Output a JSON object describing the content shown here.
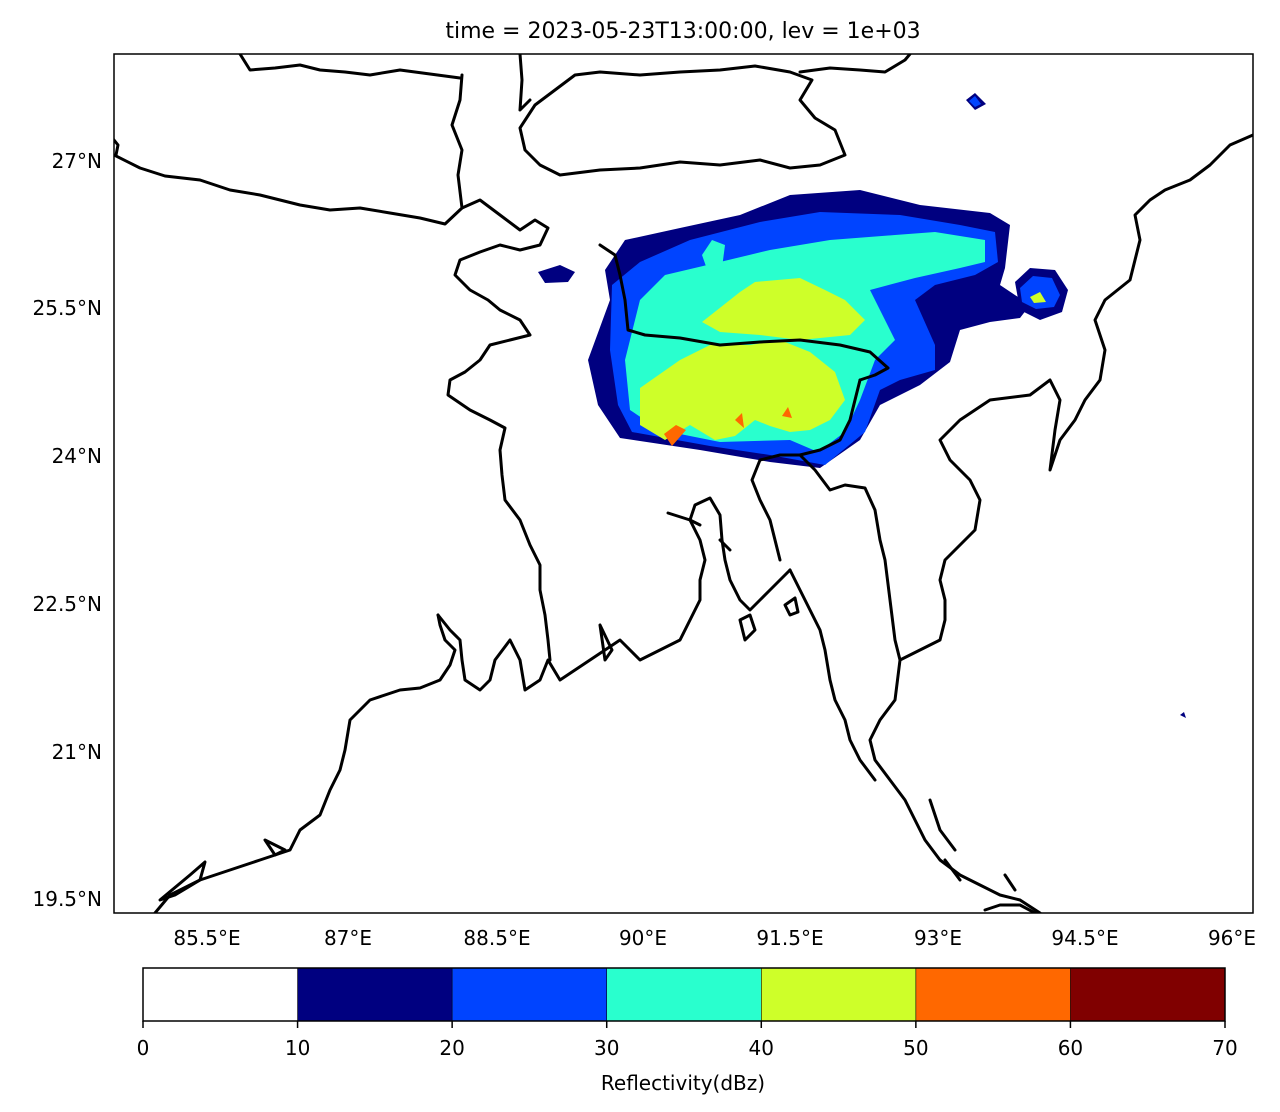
{
  "title": "time = 2023-05-23T13:00:00, lev = 1e+03",
  "map": {
    "lon_range": [
      84.5,
      96.0
    ],
    "lat_range": [
      19.4,
      28.1
    ],
    "lon_ticks": [
      "85.5°E",
      "87°E",
      "88.5°E",
      "90°E",
      "91.5°E",
      "93°E",
      "94.5°E",
      "96°E"
    ],
    "lon_tick_values": [
      85.5,
      87.0,
      88.5,
      90.0,
      91.5,
      93.0,
      94.5,
      96.0
    ],
    "lat_ticks": [
      "27°N",
      "25.5°N",
      "24°N",
      "22.5°N",
      "21°N",
      "19.5°N"
    ],
    "lat_tick_values": [
      27.0,
      25.5,
      24.0,
      22.5,
      21.0,
      19.5
    ]
  },
  "colorbar": {
    "label": "Reflectivity(dBz)",
    "levels": [
      0,
      10,
      20,
      30,
      40,
      50,
      60,
      70
    ],
    "tick_labels": [
      "0",
      "10",
      "20",
      "30",
      "40",
      "50",
      "60",
      "70"
    ],
    "colors": [
      "#ffffff",
      "#000080",
      "#0044ff",
      "#29ffce",
      "#ceff29",
      "#ff6800",
      "#800000"
    ]
  }
}
